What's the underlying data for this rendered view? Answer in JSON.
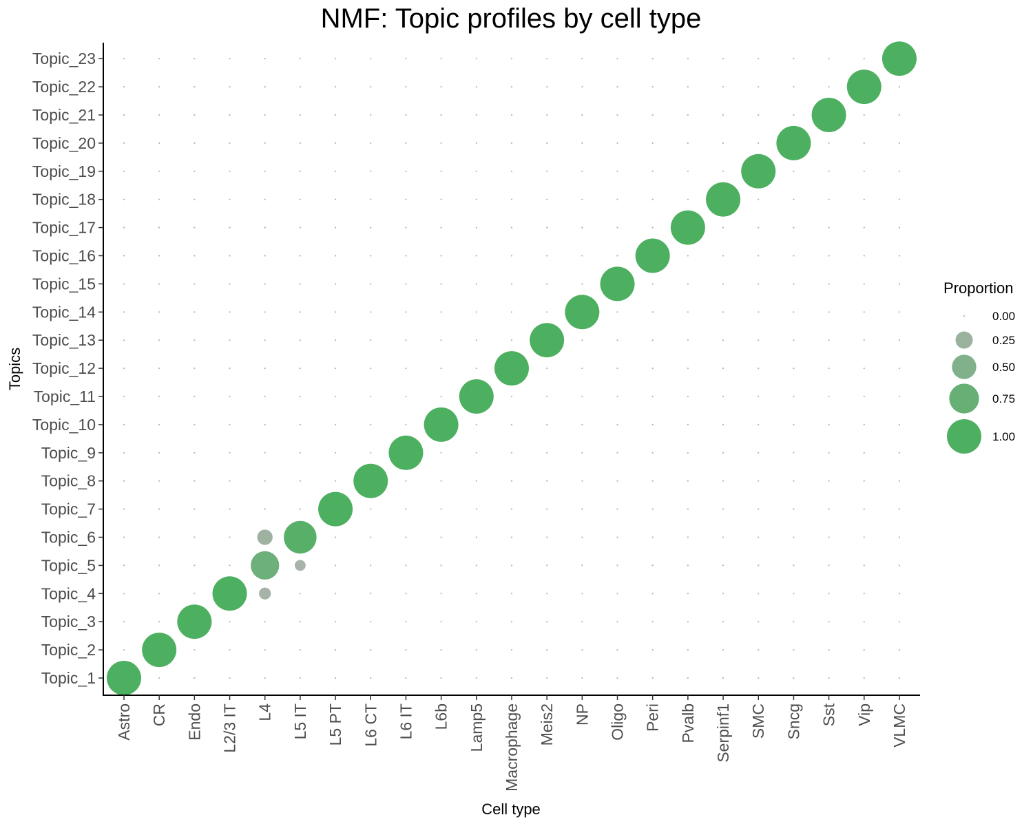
{
  "chart_data": {
    "type": "scatter",
    "title": "NMF: Topic profiles by cell type",
    "xlabel": "Cell type",
    "ylabel": "Topics",
    "x_categories": [
      "Astro",
      "CR",
      "Endo",
      "L2/3 IT",
      "L4",
      "L5 IT",
      "L5 PT",
      "L6 CT",
      "L6 IT",
      "L6b",
      "Lamp5",
      "Macrophage",
      "Meis2",
      "NP",
      "Oligo",
      "Peri",
      "Pvalb",
      "Serpinf1",
      "SMC",
      "Sncg",
      "Sst",
      "Vip",
      "VLMC"
    ],
    "y_categories": [
      "Topic_1",
      "Topic_2",
      "Topic_3",
      "Topic_4",
      "Topic_5",
      "Topic_6",
      "Topic_7",
      "Topic_8",
      "Topic_9",
      "Topic_10",
      "Topic_11",
      "Topic_12",
      "Topic_13",
      "Topic_14",
      "Topic_15",
      "Topic_16",
      "Topic_17",
      "Topic_18",
      "Topic_19",
      "Topic_20",
      "Topic_21",
      "Topic_22",
      "Topic_23"
    ],
    "points": [
      {
        "x": "Astro",
        "y": "Topic_1",
        "proportion": 1.0
      },
      {
        "x": "CR",
        "y": "Topic_2",
        "proportion": 1.0
      },
      {
        "x": "Endo",
        "y": "Topic_3",
        "proportion": 1.0
      },
      {
        "x": "L2/3 IT",
        "y": "Topic_4",
        "proportion": 1.0
      },
      {
        "x": "L4",
        "y": "Topic_4",
        "proportion": 0.12
      },
      {
        "x": "L4",
        "y": "Topic_5",
        "proportion": 0.68
      },
      {
        "x": "L4",
        "y": "Topic_6",
        "proportion": 0.2
      },
      {
        "x": "L5 IT",
        "y": "Topic_5",
        "proportion": 0.1
      },
      {
        "x": "L5 IT",
        "y": "Topic_6",
        "proportion": 0.9
      },
      {
        "x": "L5 PT",
        "y": "Topic_7",
        "proportion": 1.0
      },
      {
        "x": "L6 CT",
        "y": "Topic_8",
        "proportion": 1.0
      },
      {
        "x": "L6 IT",
        "y": "Topic_9",
        "proportion": 1.0
      },
      {
        "x": "L6b",
        "y": "Topic_10",
        "proportion": 1.0
      },
      {
        "x": "Lamp5",
        "y": "Topic_11",
        "proportion": 1.0
      },
      {
        "x": "Macrophage",
        "y": "Topic_12",
        "proportion": 1.0
      },
      {
        "x": "Meis2",
        "y": "Topic_13",
        "proportion": 1.0
      },
      {
        "x": "NP",
        "y": "Topic_14",
        "proportion": 1.0
      },
      {
        "x": "Oligo",
        "y": "Topic_15",
        "proportion": 1.0
      },
      {
        "x": "Peri",
        "y": "Topic_16",
        "proportion": 1.0
      },
      {
        "x": "Pvalb",
        "y": "Topic_17",
        "proportion": 1.0
      },
      {
        "x": "Serpinf1",
        "y": "Topic_18",
        "proportion": 1.0
      },
      {
        "x": "SMC",
        "y": "Topic_19",
        "proportion": 1.0
      },
      {
        "x": "Sncg",
        "y": "Topic_20",
        "proportion": 1.0
      },
      {
        "x": "Sst",
        "y": "Topic_21",
        "proportion": 1.0
      },
      {
        "x": "Vip",
        "y": "Topic_22",
        "proportion": 1.0
      },
      {
        "x": "VLMC",
        "y": "Topic_23",
        "proportion": 1.0
      }
    ],
    "size_legend": {
      "title": "Proportion",
      "breaks": [
        0.0,
        0.25,
        0.5,
        0.75,
        1.0
      ],
      "labels": [
        "0.00",
        "0.25",
        "0.50",
        "0.75",
        "1.00"
      ]
    },
    "color_low": "#b3b3b3",
    "color_high": "#4daf60",
    "grid": false,
    "legend_position": "right"
  }
}
